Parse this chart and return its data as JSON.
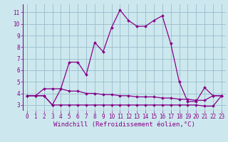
{
  "xlabel": "Windchill (Refroidissement éolien,°C)",
  "background_color": "#cce8ee",
  "line_color": "#880088",
  "grid_color": "#99bbcc",
  "xlim": [
    -0.5,
    23.5
  ],
  "ylim": [
    2.5,
    11.7
  ],
  "xticks": [
    0,
    1,
    2,
    3,
    4,
    5,
    6,
    7,
    8,
    9,
    10,
    11,
    12,
    13,
    14,
    15,
    16,
    17,
    18,
    19,
    20,
    21,
    22,
    23
  ],
  "yticks": [
    3,
    4,
    5,
    6,
    7,
    8,
    9,
    10,
    11
  ],
  "series": [
    [
      3.8,
      3.8,
      3.8,
      3.0,
      4.4,
      6.7,
      6.7,
      5.6,
      8.4,
      7.6,
      9.7,
      11.2,
      10.3,
      9.8,
      9.8,
      10.3,
      10.7,
      8.3,
      5.0,
      3.3,
      3.3,
      4.5,
      3.8,
      3.8
    ],
    [
      3.8,
      3.8,
      4.4,
      4.4,
      4.4,
      4.2,
      4.2,
      4.0,
      4.0,
      3.9,
      3.9,
      3.8,
      3.8,
      3.7,
      3.7,
      3.7,
      3.6,
      3.6,
      3.5,
      3.5,
      3.4,
      3.4,
      3.8,
      3.8
    ],
    [
      3.8,
      3.8,
      3.8,
      3.0,
      3.0,
      3.0,
      3.0,
      3.0,
      3.0,
      3.0,
      3.0,
      3.0,
      3.0,
      3.0,
      3.0,
      3.0,
      3.0,
      3.0,
      3.0,
      3.0,
      3.0,
      2.9,
      2.9,
      3.8
    ]
  ],
  "font_family": "monospace",
  "tick_fontsize": 5.5,
  "xlabel_fontsize": 6.5,
  "linewidth": 0.9,
  "markersize": 2.0
}
